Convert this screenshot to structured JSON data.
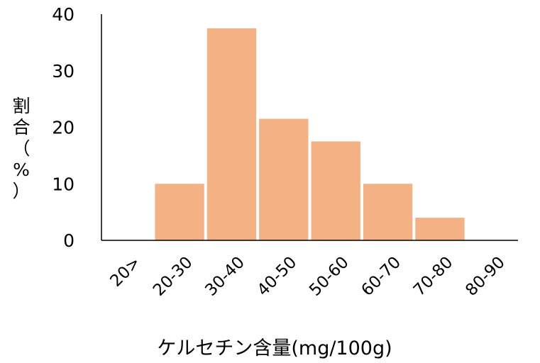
{
  "chart_data": {
    "type": "bar",
    "categories": [
      "20>",
      "20-30",
      "30-40",
      "40-50",
      "50-60",
      "60-70",
      "70-80",
      "80-90"
    ],
    "values": [
      0,
      10,
      37.5,
      21.5,
      17.5,
      10,
      4,
      0
    ],
    "xlabel": "ケルセチン含量(mg/100g)",
    "ylabel": "割合（%）",
    "ylabel_chars": [
      "割",
      "合",
      "（",
      "%",
      "）"
    ],
    "ylim": [
      0,
      40
    ],
    "yticks": [
      0,
      10,
      20,
      30,
      40
    ],
    "grid": false,
    "bar_color": "#f4b183"
  }
}
